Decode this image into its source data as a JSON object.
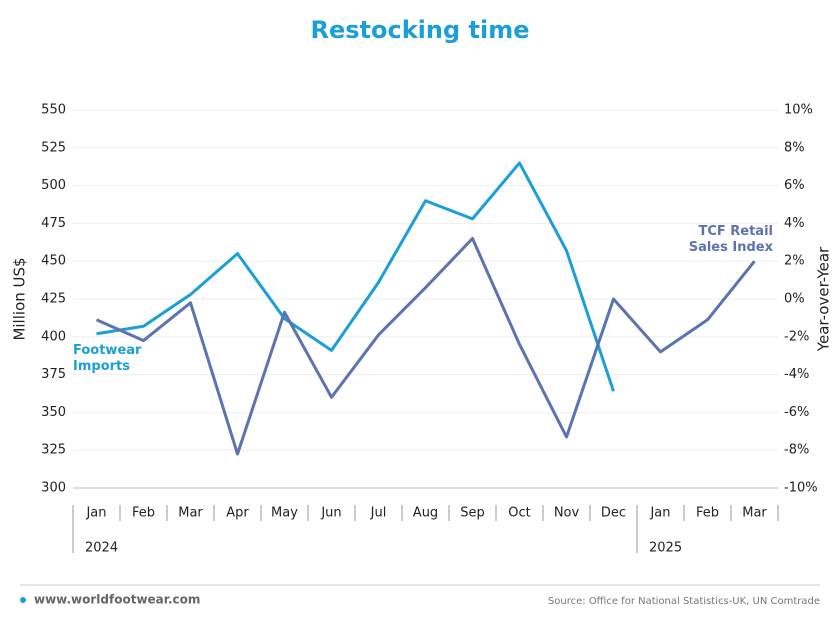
{
  "chart_data": {
    "type": "line",
    "title": "Restocking time",
    "categories": [
      "Jan",
      "Feb",
      "Mar",
      "Apr",
      "May",
      "Jun",
      "Jul",
      "Aug",
      "Sep",
      "Oct",
      "Nov",
      "Dec",
      "Jan",
      "Feb",
      "Mar"
    ],
    "years": [
      "2024",
      "2025"
    ],
    "series": [
      {
        "name": "Footwear Imports",
        "color": "#1a9fd9",
        "axis": "y",
        "values": [
          402,
          407,
          428,
          455,
          412,
          391,
          436,
          490,
          478,
          515,
          457,
          364,
          null,
          null,
          null
        ]
      },
      {
        "name": "TCF Retail Sales Index",
        "color": "#5b73b0",
        "axis": "y2",
        "values": [
          -1.1,
          -2.2,
          -0.2,
          -8.2,
          -0.7,
          -5.2,
          -1.9,
          0.6,
          3.2,
          -2.4,
          -7.3,
          0.0,
          -2.8,
          -1.1,
          2.0
        ]
      }
    ],
    "ylabel": "Million US$",
    "y2label": "Year-over-Year",
    "ylim": [
      300,
      550
    ],
    "yticks": [
      300,
      325,
      350,
      375,
      400,
      425,
      450,
      475,
      500,
      525,
      550
    ],
    "y2lim": [
      -10,
      10
    ],
    "y2ticks": [
      {
        "value": -10,
        "label": "-10%"
      },
      {
        "value": -8,
        "label": "-8%"
      },
      {
        "value": -6,
        "label": "-6%"
      },
      {
        "value": -4,
        "label": "-4%"
      },
      {
        "value": -2,
        "label": "-2%"
      },
      {
        "value": 0,
        "label": "0%"
      },
      {
        "value": 2,
        "label": "2%"
      },
      {
        "value": 4,
        "label": "4%"
      },
      {
        "value": 6,
        "label": "6%"
      },
      {
        "value": 8,
        "label": "8%"
      },
      {
        "value": 10,
        "label": "10%"
      }
    ],
    "grid": true,
    "footer_left": "www.worldfootwear.com",
    "source": "Source: Office for National Statistics-UK, UN Comtrade"
  }
}
